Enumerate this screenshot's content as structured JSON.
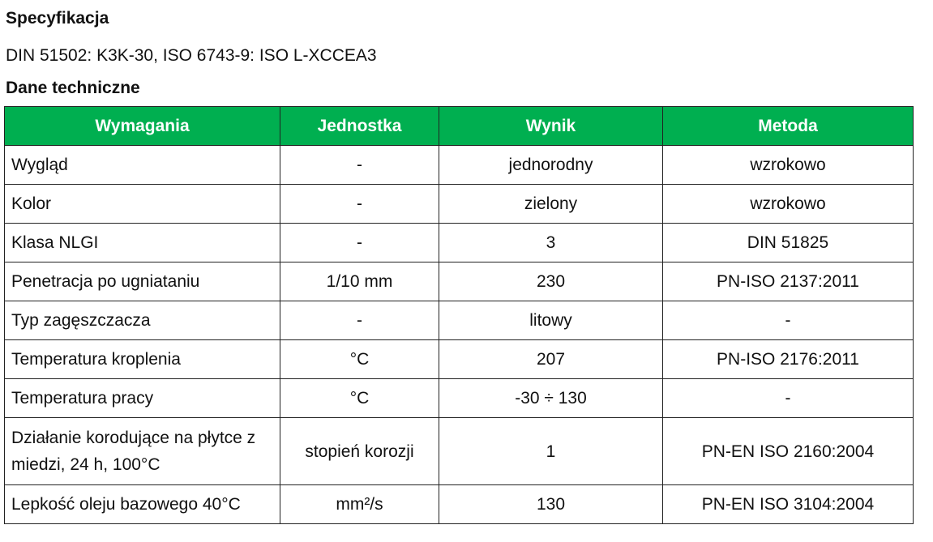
{
  "spec_heading": "Specyfikacja",
  "spec_text": "DIN 51502: K3K-30, ISO 6743-9: ISO L-XCCEA3",
  "tech_heading": "Dane techniczne",
  "colors": {
    "header_bg": "#00af50",
    "header_text": "#ffffff"
  },
  "table": {
    "headers": [
      "Wymagania",
      "Jednostka",
      "Wynik",
      "Metoda"
    ],
    "rows": [
      [
        "Wygląd",
        "-",
        "jednorodny",
        "wzrokowo"
      ],
      [
        "Kolor",
        "-",
        "zielony",
        "wzrokowo"
      ],
      [
        "Klasa NLGI",
        "-",
        "3",
        "DIN 51825"
      ],
      [
        "Penetracja po ugniataniu",
        "1/10 mm",
        "230",
        "PN-ISO 2137:2011"
      ],
      [
        "Typ zagęszczacza",
        "-",
        "litowy",
        "-"
      ],
      [
        "Temperatura kroplenia",
        "°C",
        "207",
        "PN-ISO 2176:2011"
      ],
      [
        "Temperatura pracy",
        "°C",
        "-30 ÷ 130",
        "-"
      ],
      [
        "Działanie korodujące na płytce z miedzi, 24 h, 100°C",
        "stopień korozji",
        "1",
        "PN-EN ISO 2160:2004"
      ],
      [
        "Lepkość oleju bazowego 40°C",
        "mm²/s",
        "130",
        "PN-EN ISO 3104:2004"
      ]
    ]
  }
}
